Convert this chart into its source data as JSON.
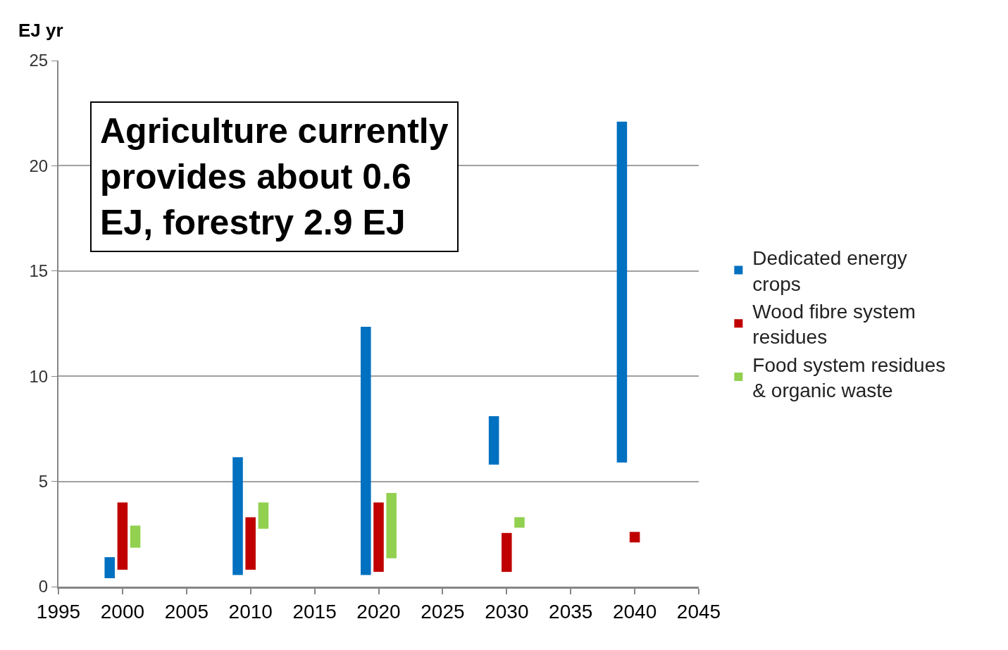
{
  "chart_data": {
    "type": "bar",
    "ylabel": "EJ yr",
    "annotations": [
      "Agriculture currently provides about 0.6 EJ, forestry 2.9 EJ"
    ],
    "series": [
      {
        "name": "Dedicated energy crops",
        "color": "#0070c0",
        "x": [
          1999,
          2009,
          2019,
          2029,
          2039
        ],
        "base": [
          0.4,
          0.55,
          0.55,
          5.8,
          5.9
        ],
        "values": [
          1.0,
          5.6,
          11.8,
          2.3,
          16.2
        ]
      },
      {
        "name": "Wood fibre system residues",
        "color": "#c00000",
        "x": [
          2000,
          2010,
          2020,
          2030,
          2040
        ],
        "base": [
          0.8,
          0.8,
          0.7,
          0.7,
          2.1
        ],
        "values": [
          3.2,
          2.5,
          3.3,
          1.85,
          0.5
        ]
      },
      {
        "name": "Food system residues & organic waste",
        "color": "#92d050",
        "x": [
          2001,
          2011,
          2021,
          2031
        ],
        "base": [
          1.85,
          2.75,
          1.35,
          2.8
        ],
        "values": [
          1.05,
          1.25,
          3.1,
          0.5
        ]
      }
    ],
    "xlim": [
      1995,
      2045
    ],
    "xticks": [
      1995,
      2000,
      2005,
      2010,
      2015,
      2020,
      2025,
      2030,
      2035,
      2040,
      2045
    ],
    "ylim": [
      0,
      25
    ],
    "yticks": [
      0,
      5,
      10,
      15,
      20,
      25
    ],
    "grid": "y",
    "legend": "right"
  }
}
